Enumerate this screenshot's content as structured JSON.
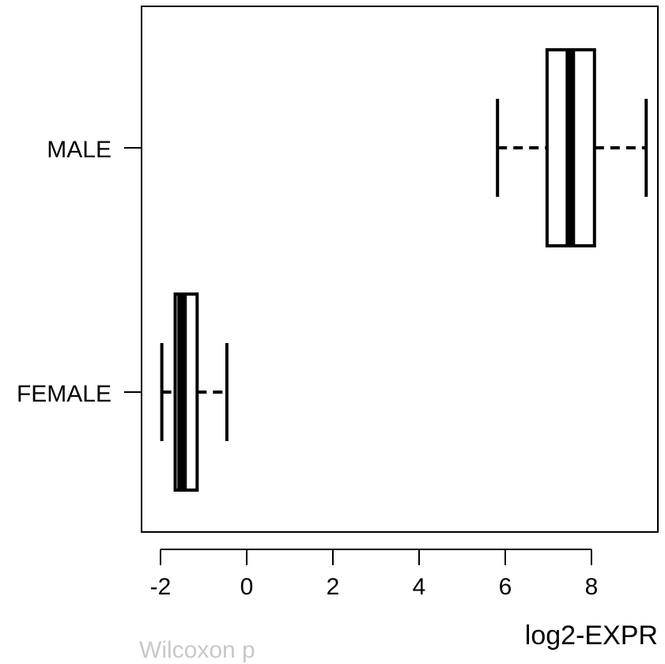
{
  "chart_data": {
    "type": "boxplot",
    "orientation": "horizontal",
    "xlabel": "log2-EXPR",
    "xlim": [
      -2.4,
      9.6
    ],
    "xticks": [
      -2,
      0,
      2,
      4,
      6,
      8
    ],
    "categories": [
      "FEMALE",
      "MALE"
    ],
    "boxes": [
      {
        "category": "FEMALE",
        "whisker_low": -1.97,
        "q1": -1.66,
        "median": -1.5,
        "q3": -1.15,
        "whisker_high": -0.46
      },
      {
        "category": "MALE",
        "whisker_low": 5.82,
        "q1": 6.97,
        "median": 7.51,
        "q3": 8.07,
        "whisker_high": 9.27
      }
    ],
    "grid": false,
    "legend": "none"
  },
  "footer_fragment": "Wilcoxon p"
}
